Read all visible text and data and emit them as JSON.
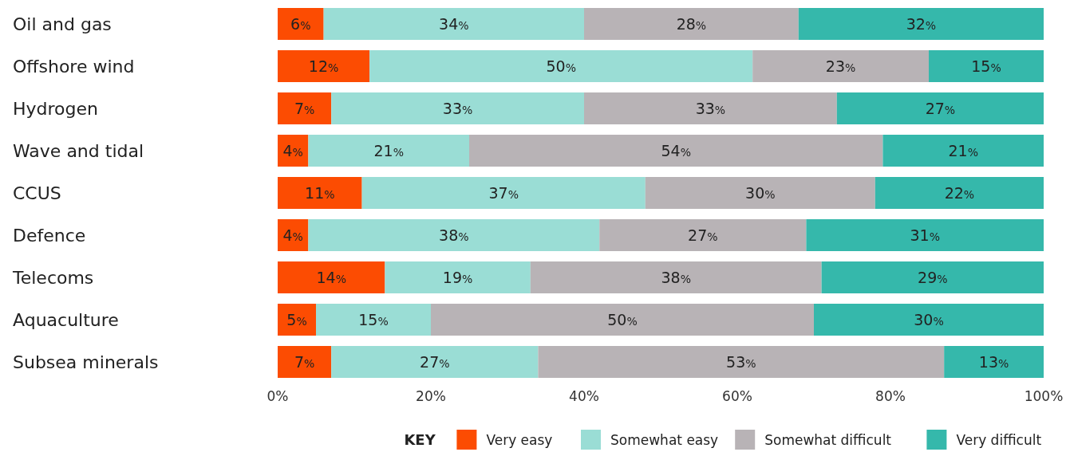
{
  "chart_data": {
    "type": "bar",
    "orientation": "horizontal",
    "stacked": true,
    "categories": [
      "Oil and gas",
      "Offshore wind",
      "Hydrogen",
      "Wave and tidal",
      "CCUS",
      "Defence",
      "Telecoms",
      "Aquaculture",
      "Subsea minerals"
    ],
    "series": [
      {
        "name": "Very easy",
        "color": "#fc4c02",
        "values": [
          6,
          12,
          7,
          4,
          11,
          4,
          14,
          5,
          7
        ],
        "value_labels": [
          "6%",
          "12%",
          "7%",
          "4%",
          "11%",
          "4%",
          "14%",
          "5%",
          "7%"
        ]
      },
      {
        "name": "Somewhat easy",
        "color": "#9addd5",
        "values": [
          34,
          50,
          33,
          21,
          37,
          38,
          19,
          15,
          27
        ],
        "value_labels": [
          "34%",
          "50%",
          "33%",
          "21%",
          "37%",
          "38%",
          "19%",
          "15%",
          "27%"
        ]
      },
      {
        "name": "Somewhat difficult",
        "color": "#b8b3b6",
        "values": [
          28,
          23,
          33,
          54,
          30,
          27,
          38,
          50,
          53
        ],
        "value_labels": [
          "28%",
          "23%",
          "33%",
          "54%",
          "30%",
          "27%",
          "38%",
          "50%",
          "53%"
        ]
      },
      {
        "name": "Very difficult",
        "color": "#35b8ab",
        "values": [
          32,
          15,
          27,
          21,
          22,
          31,
          29,
          30,
          13
        ],
        "value_labels": [
          "32%",
          "15%",
          "27%",
          "21%",
          "22%",
          "31%",
          "29%",
          "30%",
          "13%"
        ]
      }
    ],
    "xlim": [
      0,
      100
    ],
    "xticks": [
      {
        "value": 0,
        "label": "0%"
      },
      {
        "value": 20,
        "label": "20%"
      },
      {
        "value": 40,
        "label": "40%"
      },
      {
        "value": 60,
        "label": "60%"
      },
      {
        "value": 80,
        "label": "80%"
      },
      {
        "value": 100,
        "label": "100%"
      }
    ],
    "grid": false,
    "legend": "bottom",
    "legend_title": "KEY"
  }
}
